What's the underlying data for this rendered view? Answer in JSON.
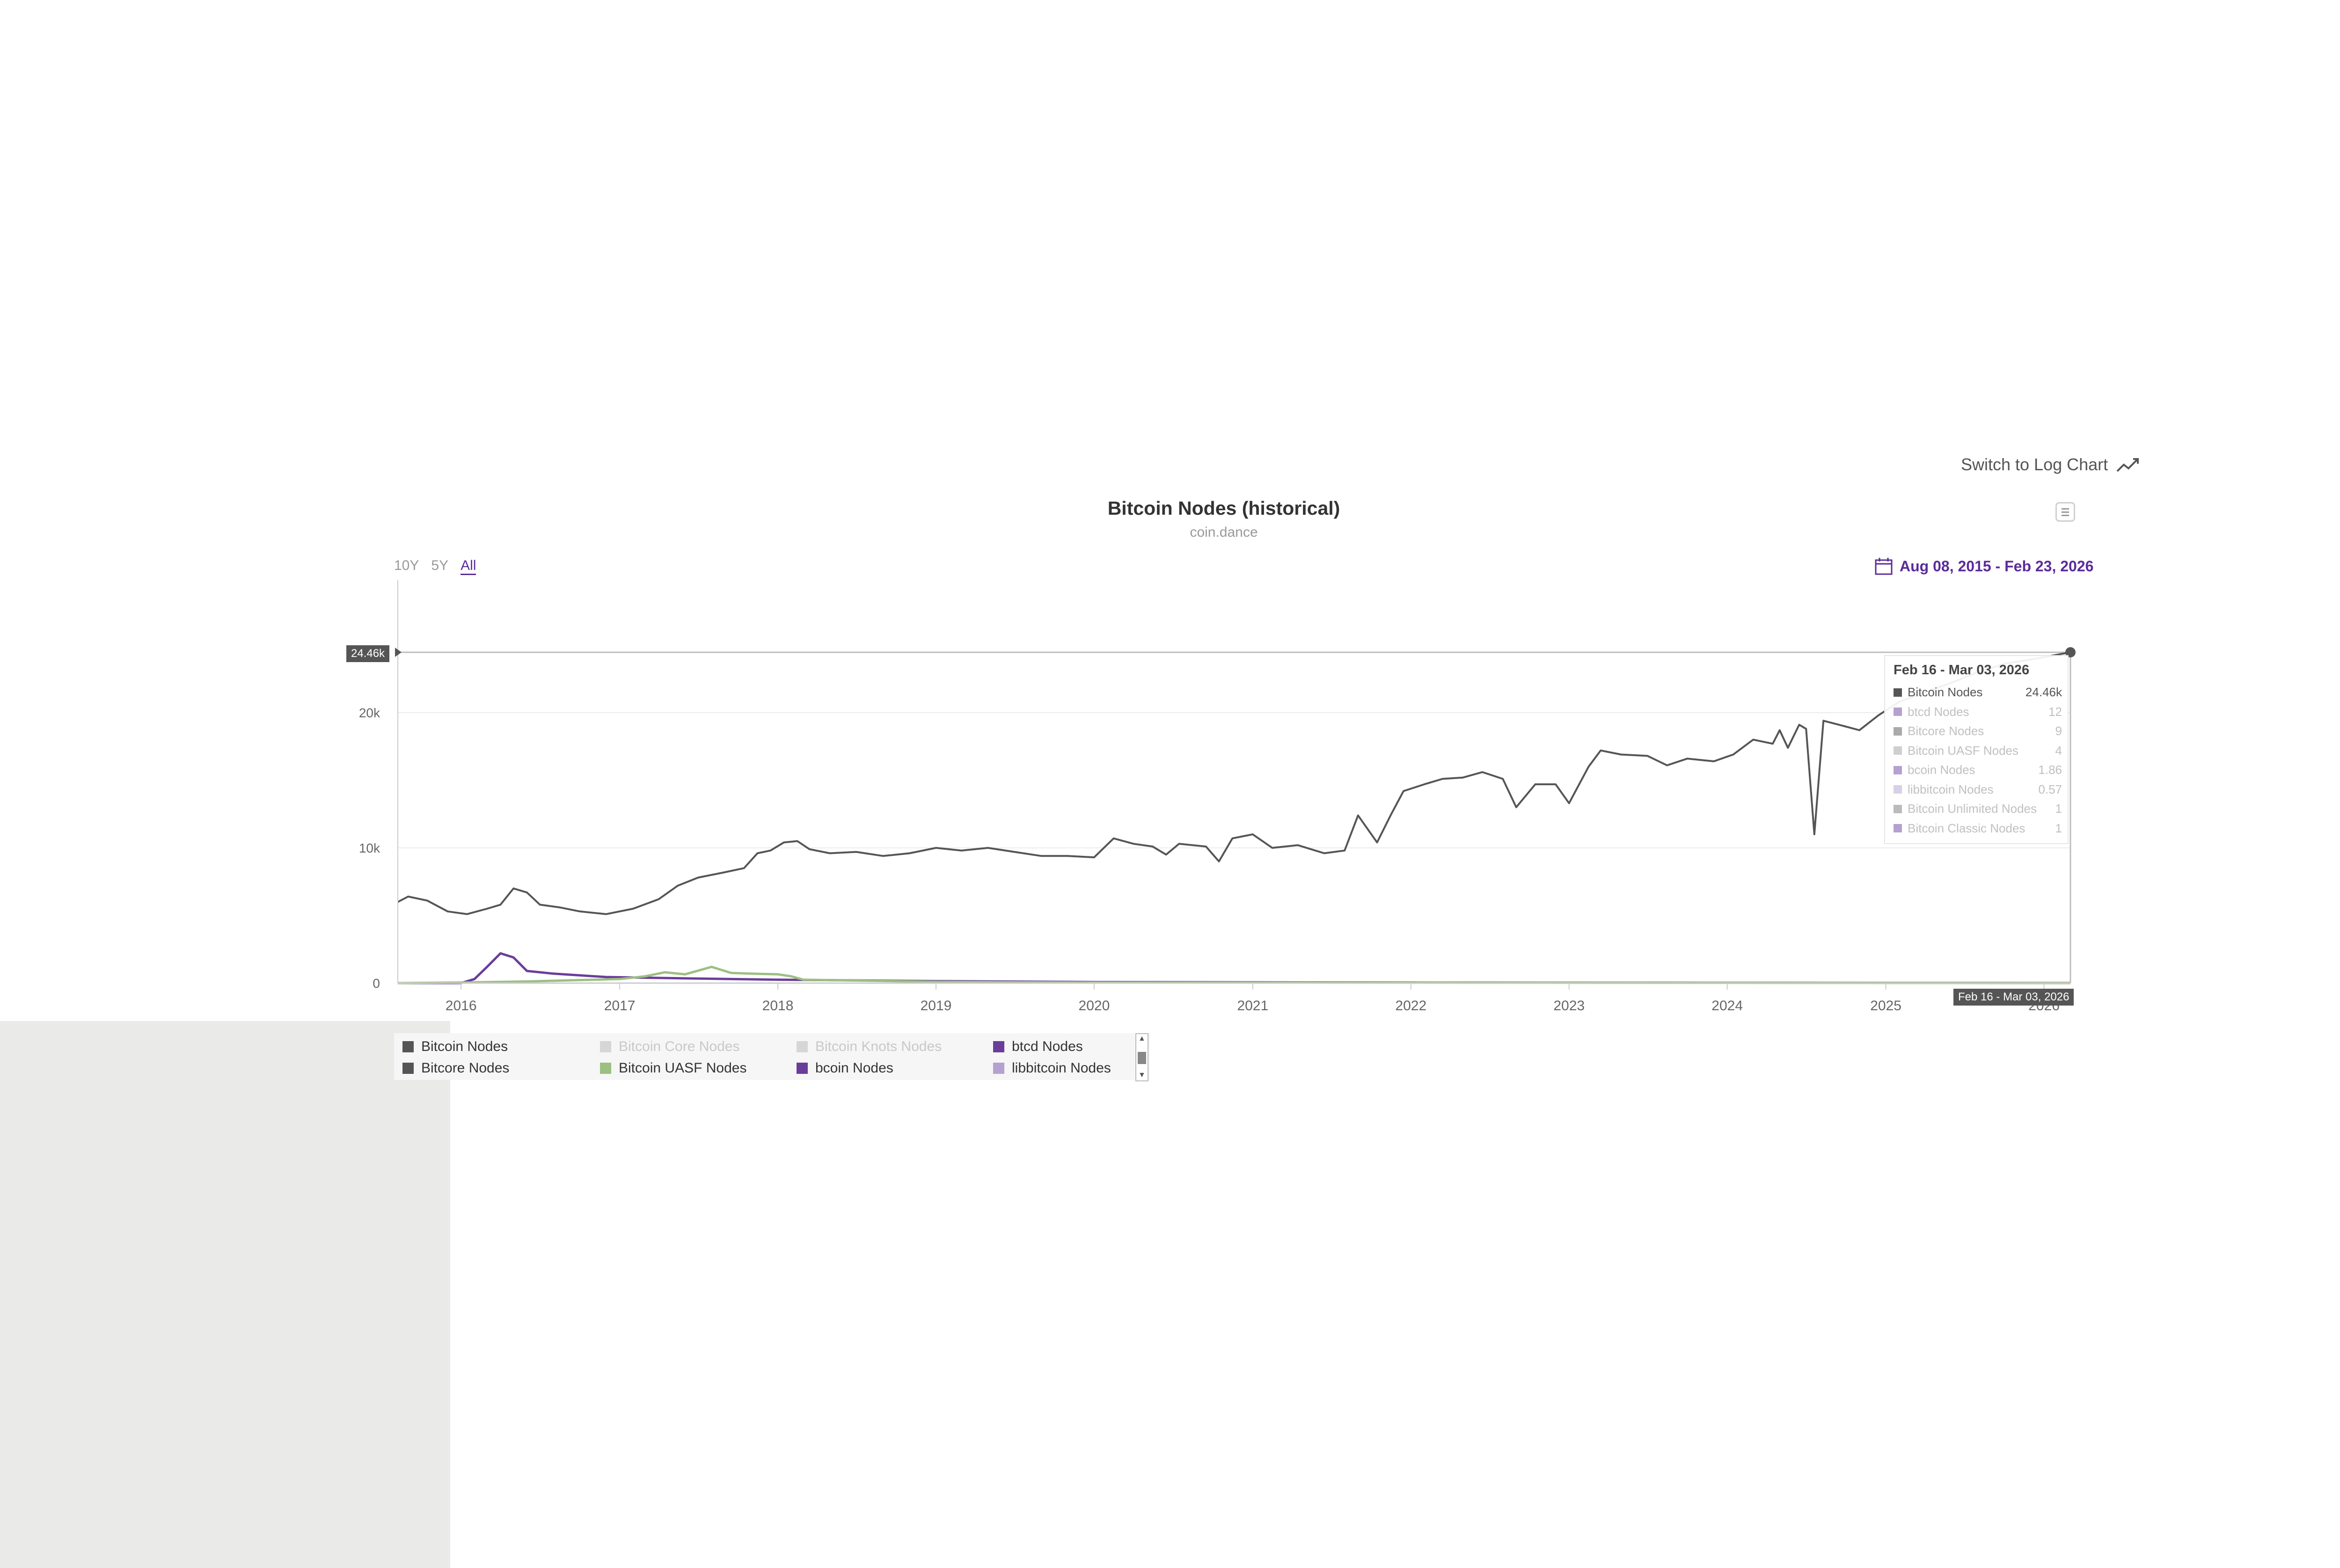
{
  "header": {
    "log_switch_label": "Switch to Log Chart",
    "log_icon": "trend-line-icon",
    "menu_icon": "hamburger-menu-icon"
  },
  "chart_data": {
    "type": "line",
    "title": "Bitcoin Nodes (historical)",
    "subtitle": "coin.dance",
    "range_buttons": [
      "10Y",
      "5Y",
      "All"
    ],
    "active_range": "All",
    "date_range": "Aug 08, 2015 - Feb 23, 2026",
    "date_range_icon": "calendar-icon",
    "xlabel": "",
    "ylabel": "",
    "x_ticks": [
      "2016",
      "2017",
      "2018",
      "2019",
      "2020",
      "2021",
      "2022",
      "2023",
      "2024",
      "2025",
      "2026"
    ],
    "y_ticks": [
      "0",
      "10k",
      "20k"
    ],
    "ylim": [
      0,
      24460
    ],
    "xlim": [
      "2015-08-08",
      "2026-03-03"
    ],
    "crosshair_y_label": "24.46k",
    "crosshair_x_label": "Feb 16 - Mar 03, 2026",
    "grid": true,
    "series": [
      {
        "name": "Bitcoin Nodes",
        "color": "#555555",
        "points": [
          [
            "2015-08-08",
            6000
          ],
          [
            "2015-09-01",
            6400
          ],
          [
            "2015-10-15",
            6100
          ],
          [
            "2015-12-01",
            5300
          ],
          [
            "2016-01-15",
            5100
          ],
          [
            "2016-03-01",
            5500
          ],
          [
            "2016-04-01",
            5800
          ],
          [
            "2016-05-01",
            7000
          ],
          [
            "2016-06-01",
            6700
          ],
          [
            "2016-07-01",
            5800
          ],
          [
            "2016-08-15",
            5600
          ],
          [
            "2016-10-01",
            5300
          ],
          [
            "2016-12-01",
            5100
          ],
          [
            "2017-02-01",
            5500
          ],
          [
            "2017-04-01",
            6200
          ],
          [
            "2017-05-15",
            7200
          ],
          [
            "2017-07-01",
            7800
          ],
          [
            "2017-09-01",
            8200
          ],
          [
            "2017-10-15",
            8500
          ],
          [
            "2017-11-15",
            9600
          ],
          [
            "2017-12-15",
            9800
          ],
          [
            "2018-01-15",
            10400
          ],
          [
            "2018-02-15",
            10500
          ],
          [
            "2018-03-15",
            9900
          ],
          [
            "2018-05-01",
            9600
          ],
          [
            "2018-07-01",
            9700
          ],
          [
            "2018-09-01",
            9400
          ],
          [
            "2018-11-01",
            9600
          ],
          [
            "2019-01-01",
            10000
          ],
          [
            "2019-03-01",
            9800
          ],
          [
            "2019-05-01",
            10000
          ],
          [
            "2019-07-01",
            9700
          ],
          [
            "2019-09-01",
            9400
          ],
          [
            "2019-11-01",
            9400
          ],
          [
            "2020-01-01",
            9300
          ],
          [
            "2020-02-15",
            10700
          ],
          [
            "2020-04-01",
            10300
          ],
          [
            "2020-05-15",
            10100
          ],
          [
            "2020-06-15",
            9500
          ],
          [
            "2020-07-15",
            10300
          ],
          [
            "2020-09-15",
            10100
          ],
          [
            "2020-10-15",
            9000
          ],
          [
            "2020-11-15",
            10700
          ],
          [
            "2021-01-01",
            11000
          ],
          [
            "2021-02-15",
            10000
          ],
          [
            "2021-04-15",
            10200
          ],
          [
            "2021-06-15",
            9600
          ],
          [
            "2021-08-01",
            9800
          ],
          [
            "2021-09-01",
            12400
          ],
          [
            "2021-10-15",
            10400
          ],
          [
            "2021-11-15",
            12400
          ],
          [
            "2021-12-15",
            14200
          ],
          [
            "2022-02-01",
            14700
          ],
          [
            "2022-03-15",
            15100
          ],
          [
            "2022-05-01",
            15200
          ],
          [
            "2022-06-15",
            15600
          ],
          [
            "2022-08-01",
            15100
          ],
          [
            "2022-09-01",
            13000
          ],
          [
            "2022-10-15",
            14700
          ],
          [
            "2022-12-01",
            14700
          ],
          [
            "2023-01-01",
            13300
          ],
          [
            "2023-02-15",
            16000
          ],
          [
            "2023-03-15",
            17200
          ],
          [
            "2023-05-01",
            16900
          ],
          [
            "2023-07-01",
            16800
          ],
          [
            "2023-08-15",
            16100
          ],
          [
            "2023-10-01",
            16600
          ],
          [
            "2023-12-01",
            16400
          ],
          [
            "2024-01-15",
            16900
          ],
          [
            "2024-03-01",
            18000
          ],
          [
            "2024-04-15",
            17700
          ],
          [
            "2024-05-01",
            18700
          ],
          [
            "2024-05-20",
            17400
          ],
          [
            "2024-06-15",
            19100
          ],
          [
            "2024-07-01",
            18800
          ],
          [
            "2024-07-20",
            11000
          ],
          [
            "2024-08-10",
            19400
          ],
          [
            "2024-09-15",
            19100
          ],
          [
            "2024-11-01",
            18700
          ],
          [
            "2024-12-15",
            19800
          ],
          [
            "2025-02-01",
            20800
          ],
          [
            "2025-04-01",
            21500
          ],
          [
            "2025-06-01",
            22200
          ],
          [
            "2025-08-01",
            23000
          ],
          [
            "2025-10-01",
            23600
          ],
          [
            "2025-12-15",
            24000
          ],
          [
            "2026-03-03",
            24460
          ]
        ]
      },
      {
        "name": "Bitcoin UASF Nodes",
        "color": "#9cbf82",
        "points": [
          [
            "2015-08-08",
            0
          ],
          [
            "2016-01-15",
            50
          ],
          [
            "2016-06-01",
            120
          ],
          [
            "2017-01-01",
            300
          ],
          [
            "2017-03-01",
            500
          ],
          [
            "2017-04-15",
            800
          ],
          [
            "2017-06-01",
            650
          ],
          [
            "2017-08-01",
            1200
          ],
          [
            "2017-09-15",
            750
          ],
          [
            "2017-11-01",
            700
          ],
          [
            "2018-01-01",
            650
          ],
          [
            "2018-02-01",
            500
          ],
          [
            "2018-03-01",
            250
          ],
          [
            "2019-01-01",
            100
          ],
          [
            "2020-01-01",
            40
          ],
          [
            "2026-03-03",
            4
          ]
        ]
      },
      {
        "name": "btcd Nodes",
        "color": "#6a3d9a",
        "points": [
          [
            "2015-08-08",
            0
          ],
          [
            "2016-01-01",
            0
          ],
          [
            "2016-02-01",
            300
          ],
          [
            "2016-03-01",
            1200
          ],
          [
            "2016-04-01",
            2200
          ],
          [
            "2016-05-01",
            1900
          ],
          [
            "2016-06-01",
            900
          ],
          [
            "2016-08-01",
            700
          ],
          [
            "2016-12-01",
            450
          ],
          [
            "2017-06-01",
            350
          ],
          [
            "2018-01-01",
            250
          ],
          [
            "2019-01-01",
            150
          ],
          [
            "2020-01-01",
            80
          ],
          [
            "2022-01-01",
            40
          ],
          [
            "2026-03-03",
            12
          ]
        ]
      }
    ],
    "legend": [
      {
        "name": "Bitcoin Nodes",
        "color": "#555555",
        "visible": true
      },
      {
        "name": "Bitcoin Core Nodes",
        "color": "#cccccc",
        "visible": false
      },
      {
        "name": "Bitcoin Knots Nodes",
        "color": "#cccccc",
        "visible": false
      },
      {
        "name": "btcd Nodes",
        "color": "#6a3d9a",
        "visible": true
      },
      {
        "name": "Bitcore Nodes",
        "color": "#555555",
        "visible": true
      },
      {
        "name": "Bitcoin UASF Nodes",
        "color": "#9cbf82",
        "visible": true
      },
      {
        "name": "bcoin Nodes",
        "color": "#6a3d9a",
        "visible": true
      },
      {
        "name": "libbitcoin Nodes",
        "color": "#b5a1cf",
        "visible": true
      }
    ],
    "tooltip": {
      "title": "Feb 16 - Mar 03, 2026",
      "rows": [
        {
          "name": "Bitcoin Nodes",
          "value": "24.46k",
          "color": "#555555"
        },
        {
          "name": "btcd Nodes",
          "value": "12",
          "color": "#b5a1cf"
        },
        {
          "name": "Bitcore Nodes",
          "value": "9",
          "color": "#aaaaaa"
        },
        {
          "name": "Bitcoin UASF Nodes",
          "value": "4",
          "color": "#cfcfcf"
        },
        {
          "name": "bcoin Nodes",
          "value": "1.86",
          "color": "#b5a1cf"
        },
        {
          "name": "libbitcoin Nodes",
          "value": "0.57",
          "color": "#d8d0e6"
        },
        {
          "name": "Bitcoin Unlimited Nodes",
          "value": "1",
          "color": "#bbbbbb"
        },
        {
          "name": "Bitcoin Classic Nodes",
          "value": "1",
          "color": "#b5a1cf"
        }
      ]
    }
  }
}
